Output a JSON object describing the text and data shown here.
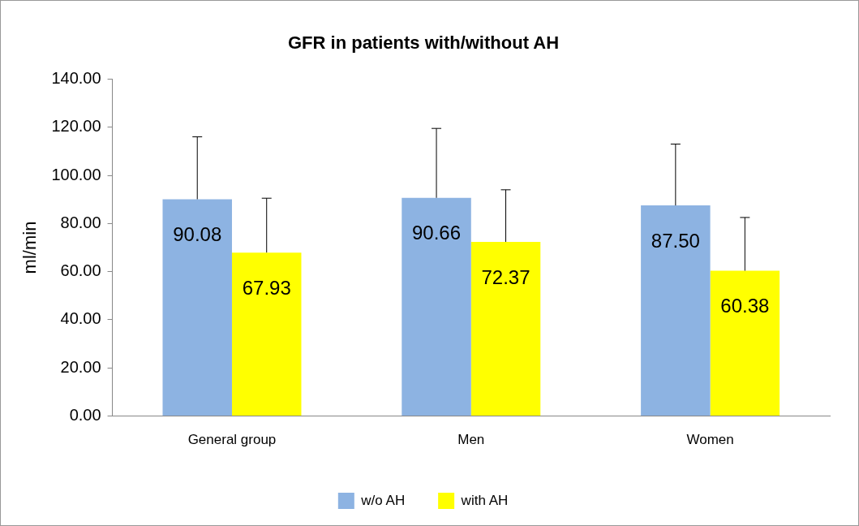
{
  "chart_data": {
    "type": "bar",
    "title": "GFR in patients with/without AH",
    "ylabel": "ml/min",
    "categories": [
      "General group",
      "Men",
      "Women"
    ],
    "series": [
      {
        "name": "w/o AH",
        "color": "#8db3e2",
        "values": [
          90.08,
          90.66,
          87.5
        ],
        "value_labels": [
          "90.08",
          "90.66",
          "87.50"
        ],
        "errors": [
          [
            90.08,
            116
          ],
          [
            90.66,
            119.5
          ],
          [
            87.5,
            113
          ]
        ]
      },
      {
        "name": "with AH",
        "color": "#ffff00",
        "values": [
          67.93,
          72.37,
          60.38
        ],
        "value_labels": [
          "67.93",
          "72.37",
          "60.38"
        ],
        "errors": [
          [
            67.93,
            90.5
          ],
          [
            72.37,
            94
          ],
          [
            60.38,
            82.5
          ]
        ]
      }
    ],
    "ylim": [
      0,
      140
    ],
    "yticks": [
      {
        "value": 0,
        "label": "0.00"
      },
      {
        "value": 20,
        "label": "20.00"
      },
      {
        "value": 40,
        "label": "40.00"
      },
      {
        "value": 60,
        "label": "60.00"
      },
      {
        "value": 80,
        "label": "80.00"
      },
      {
        "value": 100,
        "label": "100.00"
      },
      {
        "value": 120,
        "label": "120.00"
      },
      {
        "value": 140,
        "label": "140.00"
      }
    ],
    "grid": false,
    "legend": "bottom"
  }
}
